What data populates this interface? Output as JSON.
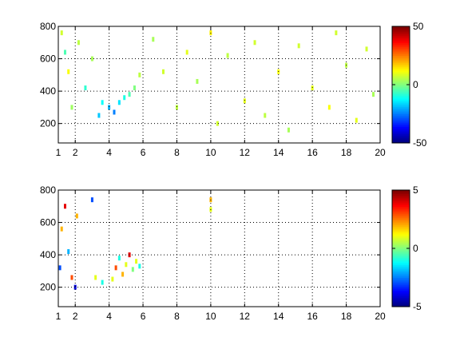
{
  "chart_data": [
    {
      "type": "heatmap",
      "title": "",
      "xlabel": "",
      "ylabel": "",
      "xlim": [
        1,
        20
      ],
      "ylim": [
        80,
        800
      ],
      "xticks": [
        1,
        2,
        4,
        6,
        8,
        10,
        12,
        14,
        16,
        18,
        20
      ],
      "xtick_labels": [
        "1",
        "2",
        "4",
        "6",
        "8",
        "10",
        "12",
        "14",
        "16",
        "18",
        "20"
      ],
      "yticks": [
        200,
        400,
        600,
        800
      ],
      "ytick_labels": [
        "200",
        "400",
        "600",
        "800"
      ],
      "grid": true,
      "colormap": "jet",
      "clim": [
        -50,
        50
      ],
      "colorbar_ticks": [
        -50,
        0,
        50
      ],
      "colorbar_tick_labels": [
        "-50",
        "0",
        "50"
      ],
      "cells": [
        [
          1.2,
          760,
          8
        ],
        [
          1.4,
          640,
          -5
        ],
        [
          1.6,
          520,
          12
        ],
        [
          1.8,
          300,
          3
        ],
        [
          2.2,
          700,
          6
        ],
        [
          2.6,
          420,
          -8
        ],
        [
          3.0,
          600,
          4
        ],
        [
          3.4,
          250,
          -18
        ],
        [
          3.6,
          330,
          -12
        ],
        [
          4.0,
          300,
          -20
        ],
        [
          4.3,
          270,
          -25
        ],
        [
          4.6,
          330,
          -15
        ],
        [
          4.9,
          360,
          -10
        ],
        [
          5.2,
          380,
          -5
        ],
        [
          5.5,
          420,
          0
        ],
        [
          5.8,
          500,
          6
        ],
        [
          6.6,
          720,
          4
        ],
        [
          7.2,
          520,
          8
        ],
        [
          8.0,
          300,
          6
        ],
        [
          8.6,
          640,
          10
        ],
        [
          9.2,
          460,
          4
        ],
        [
          10.0,
          760,
          14
        ],
        [
          10.4,
          200,
          8
        ],
        [
          11.0,
          620,
          6
        ],
        [
          12.0,
          340,
          10
        ],
        [
          12.6,
          700,
          8
        ],
        [
          13.2,
          250,
          6
        ],
        [
          14.0,
          520,
          12
        ],
        [
          14.6,
          160,
          4
        ],
        [
          15.2,
          680,
          8
        ],
        [
          16.0,
          420,
          10
        ],
        [
          17.0,
          300,
          12
        ],
        [
          17.4,
          760,
          8
        ],
        [
          18.0,
          560,
          6
        ],
        [
          18.6,
          220,
          10
        ],
        [
          19.2,
          660,
          8
        ],
        [
          19.6,
          380,
          4
        ]
      ]
    },
    {
      "type": "heatmap",
      "title": "",
      "xlabel": "",
      "ylabel": "",
      "xlim": [
        1,
        20
      ],
      "ylim": [
        80,
        800
      ],
      "xticks": [
        1,
        2,
        4,
        6,
        8,
        10,
        12,
        14,
        16,
        18,
        20
      ],
      "xtick_labels": [
        "1",
        "2",
        "4",
        "6",
        "8",
        "10",
        "12",
        "14",
        "16",
        "18",
        "20"
      ],
      "yticks": [
        200,
        400,
        600,
        800
      ],
      "ytick_labels": [
        "200",
        "400",
        "600",
        "800"
      ],
      "grid": true,
      "colormap": "jet",
      "clim": [
        -5,
        5
      ],
      "colorbar_ticks": [
        -5,
        0,
        5
      ],
      "colorbar_tick_labels": [
        "-5",
        "0",
        "5"
      ],
      "cells": [
        [
          1.1,
          320,
          -3
        ],
        [
          1.2,
          560,
          2
        ],
        [
          1.4,
          700,
          4
        ],
        [
          1.6,
          420,
          -2
        ],
        [
          1.8,
          260,
          3
        ],
        [
          2.0,
          200,
          -4
        ],
        [
          2.1,
          640,
          2
        ],
        [
          3.0,
          740,
          -3
        ],
        [
          3.2,
          260,
          1
        ],
        [
          3.6,
          230,
          -1
        ],
        [
          4.2,
          250,
          1
        ],
        [
          4.4,
          320,
          3
        ],
        [
          4.6,
          380,
          -1
        ],
        [
          4.8,
          280,
          2
        ],
        [
          5.0,
          340,
          1
        ],
        [
          5.2,
          400,
          4
        ],
        [
          5.4,
          310,
          0
        ],
        [
          5.6,
          360,
          1
        ],
        [
          5.8,
          330,
          -1
        ],
        [
          10.0,
          740,
          2
        ],
        [
          10.0,
          680,
          1
        ]
      ]
    }
  ]
}
